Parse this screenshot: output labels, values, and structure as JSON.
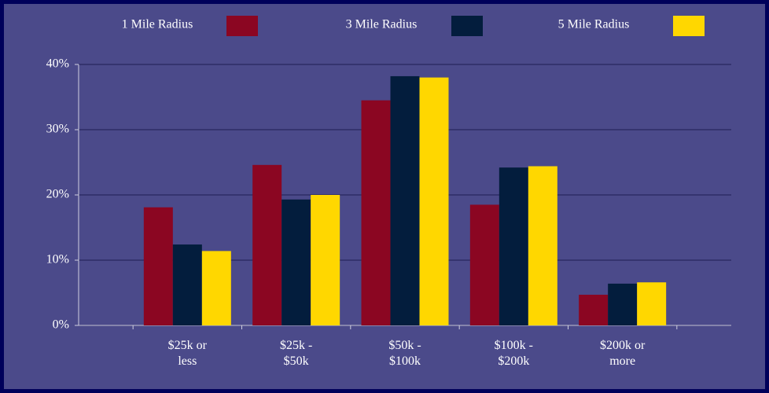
{
  "chart_data": {
    "type": "bar",
    "categories": [
      "$25k or less",
      "$25k - $50k",
      "$50k - $100k",
      "$100k - $200k",
      "$200k or more"
    ],
    "series": [
      {
        "name": "1 Mile Radius",
        "color": "#8b0622",
        "values": [
          18.1,
          24.6,
          34.5,
          18.5,
          4.7
        ]
      },
      {
        "name": "3 Mile Radius",
        "color": "#031d3d",
        "values": [
          12.4,
          19.3,
          38.2,
          24.2,
          6.4
        ]
      },
      {
        "name": "5 Mile Radius",
        "color": "#ffd700",
        "values": [
          11.4,
          20.0,
          38.0,
          24.4,
          6.6
        ]
      }
    ],
    "ylim": [
      0,
      40
    ],
    "yticks": [
      {
        "value": 0,
        "label": "0%"
      },
      {
        "value": 10,
        "label": "10%"
      },
      {
        "value": 20,
        "label": "20%"
      },
      {
        "value": 30,
        "label": "30%"
      },
      {
        "value": 40,
        "label": "40%"
      }
    ],
    "grid": true,
    "legend": "top"
  }
}
